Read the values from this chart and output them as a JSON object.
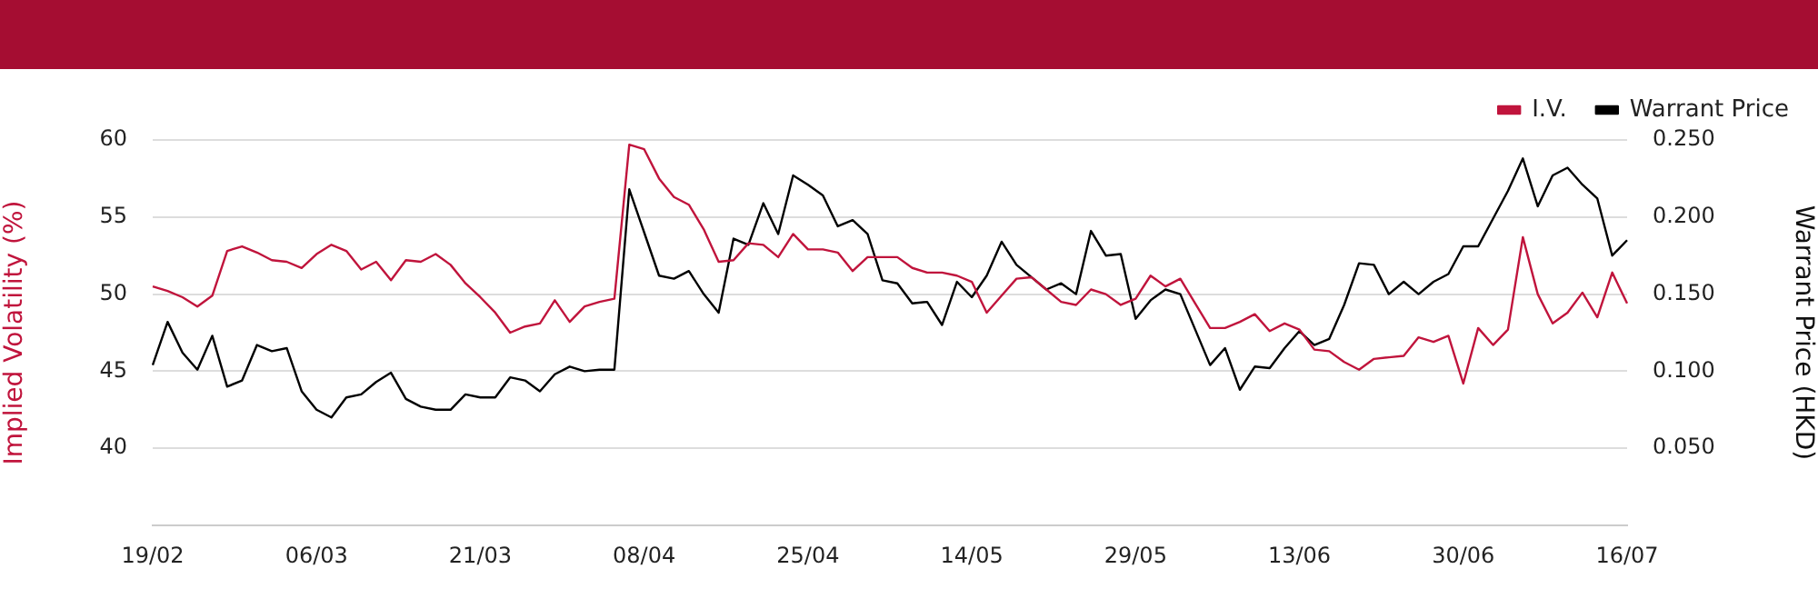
{
  "chart_data": {
    "type": "line",
    "categories": [
      "19/02",
      null,
      null,
      null,
      null,
      null,
      null,
      null,
      null,
      null,
      null,
      "06/03",
      null,
      null,
      null,
      null,
      null,
      null,
      null,
      null,
      null,
      null,
      "21/03",
      null,
      null,
      null,
      null,
      null,
      null,
      null,
      null,
      null,
      null,
      "08/04",
      null,
      null,
      null,
      null,
      null,
      null,
      null,
      null,
      null,
      null,
      "25/04",
      null,
      null,
      null,
      null,
      null,
      null,
      null,
      null,
      null,
      null,
      "14/05",
      null,
      null,
      null,
      null,
      null,
      null,
      null,
      null,
      null,
      null,
      "29/05",
      null,
      null,
      null,
      null,
      null,
      null,
      null,
      null,
      null,
      null,
      "13/06",
      null,
      null,
      null,
      null,
      null,
      null,
      null,
      null,
      null,
      null,
      "30/06",
      null,
      null,
      null,
      null,
      null,
      null,
      null,
      null,
      null,
      null,
      "16/07"
    ],
    "series": [
      {
        "name": "I.V.",
        "color": "#c0143c",
        "axis": "y",
        "values": [
          50.5,
          50.2,
          49.8,
          49.2,
          49.9,
          52.8,
          53.1,
          52.7,
          52.2,
          52.1,
          51.7,
          52.6,
          53.2,
          52.8,
          51.6,
          52.1,
          50.9,
          52.2,
          52.1,
          52.6,
          51.9,
          50.7,
          49.8,
          48.8,
          47.5,
          47.9,
          48.1,
          49.6,
          48.2,
          49.2,
          49.5,
          49.7,
          59.7,
          59.4,
          57.5,
          56.3,
          55.8,
          54.2,
          52.1,
          52.2,
          53.3,
          53.2,
          52.4,
          53.9,
          52.9,
          52.9,
          52.7,
          51.5,
          52.4,
          52.4,
          52.4,
          51.7,
          51.4,
          51.4,
          51.2,
          50.8,
          48.8,
          49.9,
          51.0,
          51.1,
          50.3,
          49.5,
          49.3,
          50.3,
          50.0,
          49.3,
          49.7,
          51.2,
          50.5,
          51.0,
          49.4,
          47.8,
          47.8,
          48.2,
          48.7,
          47.6,
          48.1,
          47.7,
          46.4,
          46.3,
          45.6,
          45.1,
          45.8,
          45.9,
          46.0,
          47.2,
          46.9,
          47.3,
          44.2,
          47.8,
          46.7,
          47.7,
          53.7,
          50.0,
          48.1,
          48.8,
          50.1,
          48.5,
          51.4,
          49.4
        ]
      },
      {
        "name": "Warrant Price",
        "color": "#000000",
        "axis": "y2",
        "values": [
          0.104,
          0.132,
          0.112,
          0.101,
          0.123,
          0.09,
          0.094,
          0.117,
          0.113,
          0.115,
          0.087,
          0.075,
          0.07,
          0.083,
          0.085,
          0.093,
          0.099,
          0.082,
          0.077,
          0.075,
          0.075,
          0.085,
          0.083,
          0.083,
          0.096,
          0.094,
          0.087,
          0.098,
          0.103,
          0.1,
          0.101,
          0.101,
          0.218,
          0.19,
          0.162,
          0.16,
          0.165,
          0.15,
          0.138,
          0.186,
          0.182,
          0.209,
          0.189,
          0.227,
          0.221,
          0.214,
          0.194,
          0.198,
          0.189,
          0.159,
          0.157,
          0.144,
          0.145,
          0.13,
          0.158,
          0.148,
          0.162,
          0.184,
          0.169,
          0.161,
          0.153,
          0.157,
          0.15,
          0.191,
          0.175,
          0.176,
          0.134,
          0.146,
          0.153,
          0.15,
          0.127,
          0.104,
          0.115,
          0.088,
          0.103,
          0.102,
          0.115,
          0.126,
          0.117,
          0.121,
          0.143,
          0.17,
          0.169,
          0.15,
          0.158,
          0.15,
          0.158,
          0.163,
          0.181,
          0.181,
          0.199,
          0.217,
          0.238,
          0.207,
          0.227,
          0.232,
          0.221,
          0.212,
          0.175,
          0.185
        ]
      }
    ],
    "ylabel": "Implied Volatility (%)",
    "y2label": "Warrant Price (HKD)",
    "ylim": [
      35,
      60
    ],
    "yticks": [
      40,
      45,
      50,
      55,
      60
    ],
    "y2lim": [
      0,
      0.25
    ],
    "y2ticks": [
      {
        "value": 0.05,
        "label": "0.050"
      },
      {
        "value": 0.1,
        "label": "0.100"
      },
      {
        "value": 0.15,
        "label": "0.150"
      },
      {
        "value": 0.2,
        "label": "0.200"
      },
      {
        "value": 0.25,
        "label": "0.250"
      }
    ],
    "grid": "y",
    "legend": "top right",
    "marker": "none",
    "line_style": "solid"
  }
}
